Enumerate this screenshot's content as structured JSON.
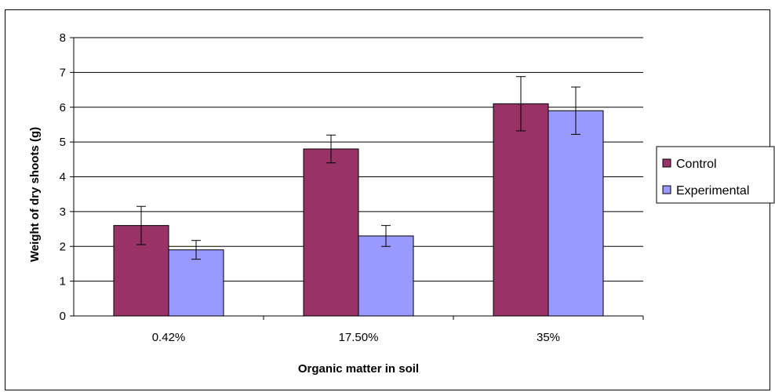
{
  "chart_data": {
    "type": "bar",
    "title": "",
    "xlabel": "Organic matter in soil",
    "ylabel": "Weight of dry shoots (g)",
    "ylim": [
      0,
      8
    ],
    "yticks": [
      0,
      1,
      2,
      3,
      4,
      5,
      6,
      7,
      8
    ],
    "grid": true,
    "legend_position": "right",
    "categories": [
      "0.42%",
      "17.50%",
      "35%"
    ],
    "series": [
      {
        "name": "Control",
        "color": "#993366",
        "values": [
          2.6,
          4.8,
          6.1
        ],
        "error": [
          0.55,
          0.4,
          0.78
        ]
      },
      {
        "name": "Experimental",
        "color": "#9999ff",
        "values": [
          1.9,
          2.3,
          5.9
        ],
        "error": [
          0.27,
          0.3,
          0.68
        ]
      }
    ]
  }
}
